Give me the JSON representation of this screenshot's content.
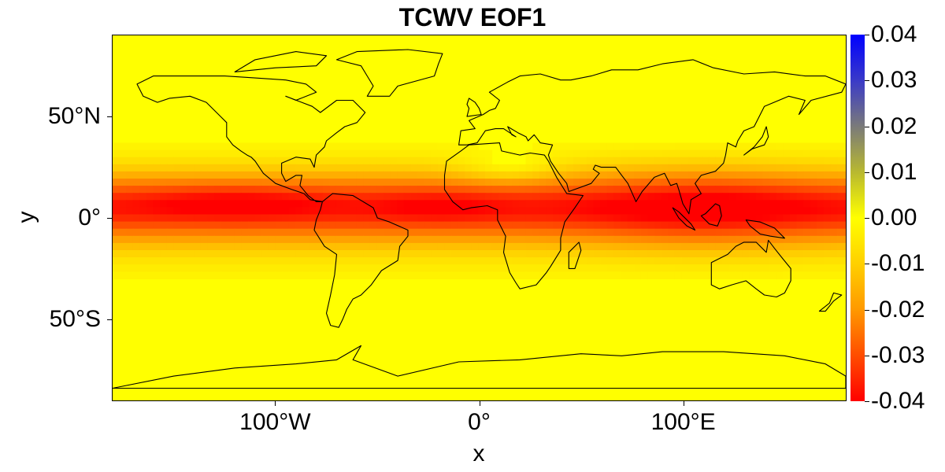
{
  "title": "TCWV EOF1",
  "axes": {
    "xlabel": "x",
    "ylabel": "y",
    "xticks": [
      {
        "label": "100°W",
        "lon": -100
      },
      {
        "label": "0°",
        "lon": 0
      },
      {
        "label": "100°E",
        "lon": 100
      }
    ],
    "yticks": [
      {
        "label": "50°N",
        "lat": 50
      },
      {
        "label": "0°",
        "lat": 0
      },
      {
        "label": "50°S",
        "lat": -50
      }
    ],
    "xlim": [
      -180,
      180
    ],
    "ylim": [
      -90,
      90
    ]
  },
  "colorbar": {
    "min": -0.04,
    "max": 0.04,
    "labels": [
      "0.04",
      "0.03",
      "0.02",
      "0.01",
      "0.00",
      "-0.01",
      "-0.02",
      "-0.03",
      "-0.04"
    ],
    "colors": {
      "min": "#ff0000",
      "zero": "#ffff00",
      "max": "#0000ff"
    }
  },
  "chart_data": {
    "type": "heatmap",
    "title": "TCWV EOF1",
    "xlabel": "x",
    "ylabel": "y",
    "xlim": [
      -180,
      180
    ],
    "ylim": [
      -90,
      90
    ],
    "zlim": [
      -0.04,
      0.04
    ],
    "overlay": "coastlines-and-country-borders",
    "pattern": "negative loadings concentrated in tropical band, strongest near equator over Indian Ocean / Maritime Continent and eastern Pacific ITCZ; near zero at high latitudes",
    "legend_position": "right"
  }
}
